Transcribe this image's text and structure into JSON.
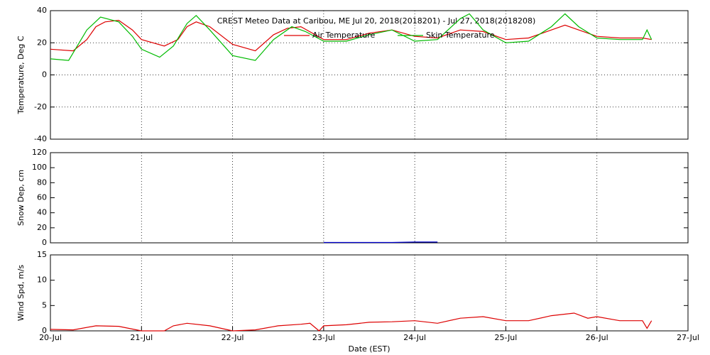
{
  "chart_data": [
    {
      "type": "line",
      "title": "CREST Meteo Data at Caribou, ME   Jul 20, 2018(2018201) - Jul 27, 2018(2018208)",
      "y_label": "Temperature, Deg C",
      "xlim": [
        0,
        7
      ],
      "ylim": [
        -40,
        40
      ],
      "yticks": [
        -40,
        -20,
        0,
        20,
        40
      ],
      "grid": true,
      "legend": "top",
      "series": [
        {
          "name": "Air Temperature",
          "color": "#dd0000",
          "x": [
            0,
            0.25,
            0.4,
            0.5,
            0.6,
            0.75,
            0.9,
            1.0,
            1.25,
            1.4,
            1.5,
            1.6,
            1.75,
            2.0,
            2.25,
            2.45,
            2.6,
            2.75,
            3.0,
            3.25,
            3.5,
            3.75,
            4.0,
            4.25,
            4.5,
            4.75,
            5.0,
            5.25,
            5.5,
            5.65,
            5.8,
            6.0,
            6.25,
            6.5,
            6.6
          ],
          "values": [
            16,
            15,
            22,
            30,
            33,
            34,
            28,
            22,
            18,
            22,
            30,
            33,
            30,
            19,
            15,
            25,
            29,
            30,
            22,
            22,
            26,
            28,
            24,
            23,
            28,
            27,
            22,
            23,
            28,
            31,
            28,
            24,
            23,
            23,
            22
          ]
        },
        {
          "name": "Skin Temperature",
          "color": "#00bb00",
          "x": [
            0,
            0.2,
            0.4,
            0.55,
            0.75,
            0.9,
            1.0,
            1.2,
            1.35,
            1.5,
            1.6,
            1.75,
            2.0,
            2.25,
            2.45,
            2.65,
            2.8,
            3.0,
            3.25,
            3.5,
            3.75,
            4.0,
            4.25,
            4.5,
            4.6,
            4.75,
            5.0,
            5.25,
            5.5,
            5.65,
            5.8,
            6.0,
            6.25,
            6.5,
            6.55,
            6.6
          ],
          "values": [
            10,
            9,
            28,
            36,
            33,
            24,
            16,
            11,
            18,
            32,
            37,
            28,
            12,
            9,
            22,
            30,
            27,
            21,
            21,
            25,
            28,
            21,
            22,
            35,
            38,
            28,
            20,
            21,
            30,
            38,
            30,
            23,
            22,
            22,
            28,
            22
          ]
        }
      ]
    },
    {
      "type": "line",
      "y_label": "Snow Dep, cm",
      "xlim": [
        0,
        7
      ],
      "ylim": [
        0,
        120
      ],
      "yticks": [
        0,
        20,
        40,
        60,
        80,
        100,
        120
      ],
      "grid": true,
      "series": [
        {
          "color": "#0000cc",
          "x": [
            3.0,
            3.25,
            3.5,
            3.75,
            4.0,
            4.25
          ],
          "values": [
            0.5,
            0.5,
            0.5,
            0.5,
            1,
            1
          ]
        }
      ]
    },
    {
      "type": "line",
      "y_label": "Wind Spd, m/s",
      "x_label": "Date (EST)",
      "xlim": [
        0,
        7
      ],
      "ylim": [
        0,
        15
      ],
      "yticks": [
        0,
        5,
        10,
        15
      ],
      "xticks": [
        {
          "value": 0,
          "label": "20-Jul"
        },
        {
          "value": 1,
          "label": "21-Jul"
        },
        {
          "value": 2,
          "label": "22-Jul"
        },
        {
          "value": 3,
          "label": "23-Jul"
        },
        {
          "value": 4,
          "label": "24-Jul"
        },
        {
          "value": 5,
          "label": "25-Jul"
        },
        {
          "value": 6,
          "label": "26-Jul"
        },
        {
          "value": 7,
          "label": "27-Jul"
        }
      ],
      "grid": true,
      "series": [
        {
          "color": "#dd0000",
          "x": [
            0,
            0.25,
            0.5,
            0.75,
            1.0,
            1.25,
            1.35,
            1.5,
            1.75,
            2.0,
            2.25,
            2.5,
            2.75,
            2.85,
            2.95,
            3.0,
            3.25,
            3.5,
            3.75,
            4.0,
            4.25,
            4.5,
            4.75,
            5.0,
            5.25,
            5.5,
            5.75,
            5.9,
            6.0,
            6.25,
            6.5,
            6.55,
            6.6
          ],
          "values": [
            0.3,
            0.2,
            1,
            0.9,
            0,
            0,
            1,
            1.5,
            1,
            0,
            0.2,
            1,
            1.3,
            1.5,
            0,
            1,
            1.2,
            1.7,
            1.8,
            2,
            1.5,
            2.5,
            2.8,
            2,
            2,
            3,
            3.5,
            2.5,
            2.8,
            2,
            2,
            0.5,
            2
          ]
        }
      ]
    }
  ]
}
